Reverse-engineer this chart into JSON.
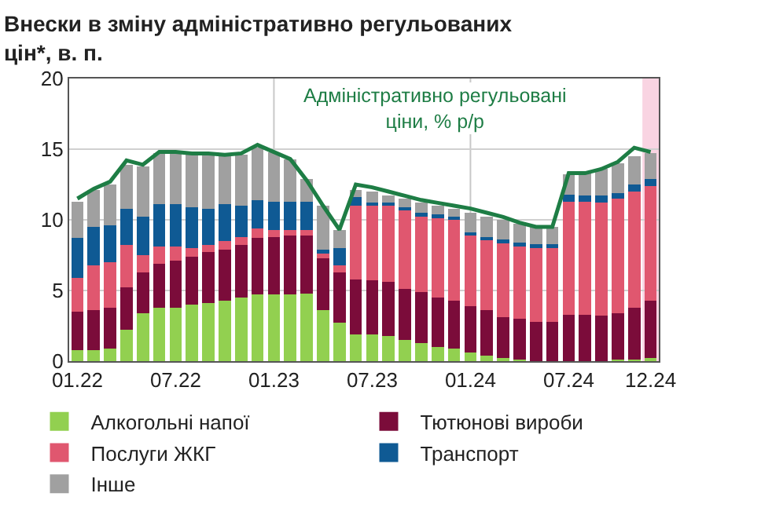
{
  "chart_data": {
    "type": "bar",
    "stacked": true,
    "title": "Внески в зміну адміністративно регульованих цін*, в. п.",
    "categories": [
      "01.22",
      null,
      null,
      null,
      null,
      null,
      "07.22",
      null,
      null,
      null,
      null,
      null,
      "01.23",
      null,
      null,
      null,
      null,
      null,
      "07.23",
      null,
      null,
      null,
      null,
      null,
      "01.24",
      null,
      null,
      null,
      null,
      null,
      "07.24",
      null,
      null,
      null,
      null,
      "12.24"
    ],
    "series": [
      {
        "name": "Алкогольні напої",
        "color": "#92d050",
        "values": [
          0.8,
          0.8,
          0.9,
          2.2,
          3.4,
          3.8,
          3.8,
          4.0,
          4.1,
          4.3,
          4.5,
          4.7,
          4.7,
          4.7,
          4.8,
          3.6,
          2.7,
          1.9,
          1.9,
          1.8,
          1.5,
          1.3,
          1.0,
          0.9,
          0.6,
          0.4,
          0.2,
          0.1,
          0,
          0,
          0,
          0,
          0,
          0.1,
          0.1,
          0.2
        ]
      },
      {
        "name": "Тютюнові вироби",
        "color": "#7b0c3a",
        "values": [
          2.7,
          2.8,
          2.9,
          3.0,
          2.9,
          3.1,
          3.3,
          3.4,
          3.6,
          3.6,
          3.7,
          4.0,
          4.1,
          4.2,
          4.1,
          3.7,
          3.6,
          3.9,
          3.8,
          3.8,
          3.6,
          3.6,
          3.5,
          3.4,
          3.3,
          3.2,
          2.9,
          2.9,
          2.8,
          2.8,
          3.3,
          3.3,
          3.2,
          3.3,
          3.7,
          4.1
        ]
      },
      {
        "name": "Послуги ЖКГ",
        "color": "#e0576f",
        "values": [
          2.4,
          3.2,
          3.2,
          3.0,
          1.2,
          1.2,
          1.0,
          0.6,
          0.5,
          0.6,
          0.6,
          0.7,
          0.5,
          0.4,
          0.4,
          0.3,
          0.5,
          5.2,
          5.3,
          5.4,
          5.6,
          5.4,
          5.7,
          5.7,
          5.0,
          5.0,
          5.3,
          5.2,
          5.2,
          5.2,
          8.0,
          8.0,
          8.0,
          8.1,
          8.2,
          8.1
        ]
      },
      {
        "name": "Транспорт",
        "color": "#0f5a94",
        "values": [
          2.8,
          2.7,
          2.6,
          2.6,
          2.7,
          3.0,
          3.0,
          2.9,
          2.6,
          2.6,
          2.2,
          2.0,
          2.0,
          2.0,
          2.0,
          0.3,
          1.2,
          0.6,
          0.2,
          0.2,
          0.2,
          0.2,
          0.2,
          0.2,
          0.2,
          0.2,
          0.2,
          0.2,
          0.3,
          0.3,
          0.5,
          0.4,
          0.5,
          0.4,
          0.5,
          0.5
        ]
      },
      {
        "name": "Інше",
        "color": "#a0a0a0",
        "values": [
          2.6,
          2.6,
          2.9,
          3.1,
          3.6,
          3.6,
          3.6,
          3.7,
          3.8,
          3.5,
          3.6,
          3.7,
          3.5,
          3.0,
          1.6,
          3.1,
          1.3,
          0.5,
          0.8,
          0.5,
          0.6,
          0.7,
          0.6,
          0.6,
          1.4,
          1.4,
          1.4,
          1.3,
          1.2,
          1.2,
          1.4,
          1.6,
          1.9,
          2.1,
          2.0,
          1.8
        ]
      },
      {
        "name": "Адміністративно регульовані ціни, % р/р",
        "type": "line",
        "color": "#1e7d45",
        "values": [
          11.5,
          12.2,
          12.7,
          14.2,
          13.9,
          14.8,
          14.8,
          14.7,
          14.7,
          14.6,
          14.7,
          15.3,
          14.8,
          14.3,
          12.8,
          11.0,
          9.3,
          12.5,
          12.3,
          12.0,
          11.7,
          11.4,
          11.2,
          11.0,
          10.8,
          10.5,
          10.2,
          9.8,
          9.5,
          9.5,
          13.3,
          13.3,
          13.6,
          14.1,
          15.1,
          14.8
        ]
      }
    ],
    "ylim": [
      0,
      20
    ],
    "yticks": [
      0,
      5,
      10,
      15,
      20
    ],
    "grid": "y",
    "ref_lines": [
      {
        "axis": "x",
        "value": "01.23",
        "color": "#c8c8c8"
      },
      {
        "axis": "x",
        "value": "01.24",
        "color": "#c8c8c8"
      }
    ],
    "bands": [
      {
        "axis": "x",
        "from": "12.24",
        "to": "12.24",
        "color": "#f9d4e2"
      }
    ],
    "legend": "bottom",
    "line_style": "solid",
    "marker": "none"
  }
}
